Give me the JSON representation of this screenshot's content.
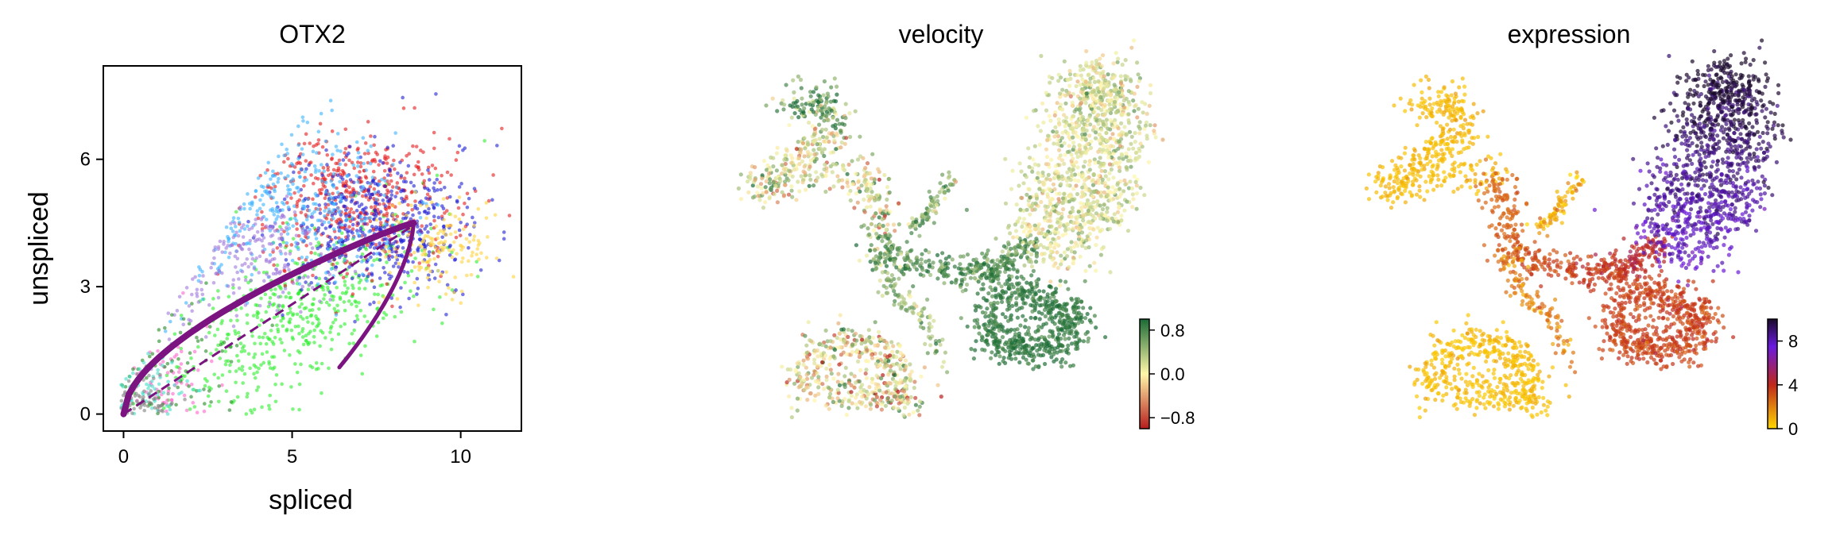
{
  "chart_data": [
    {
      "type": "scatter",
      "title": "OTX2",
      "xlabel": "spliced",
      "ylabel": "unspliced",
      "xlim": [
        -0.6,
        11.8
      ],
      "ylim": [
        -0.4,
        8.2
      ],
      "xticks": [
        0,
        5,
        10
      ],
      "yticks": [
        0,
        3,
        6
      ],
      "point_colors": [
        "#e41a1c",
        "#1f1fd6",
        "#3ab3ff",
        "#2bee2b",
        "#ffd23a",
        "#a078dc",
        "#ff66cc",
        "#228b22",
        "#44e0c8",
        "#808080",
        "#9e3ae0"
      ],
      "fit_color": "#7b1380",
      "steady_state_color": "#7b1380",
      "grid": false,
      "legend": "none"
    },
    {
      "type": "scatter",
      "title": "velocity",
      "colorbar": {
        "ticks": [
          "0.8",
          "0.0",
          "−0.8"
        ],
        "min": -1,
        "max": 1,
        "colors": [
          "#b71c1c",
          "#fff7a8",
          "#1a6b35"
        ]
      },
      "axes": "off"
    },
    {
      "type": "scatter",
      "title": "expression",
      "colorbar": {
        "ticks": [
          "8",
          "4",
          "0"
        ],
        "min": 0,
        "max": 10,
        "colors": [
          "#ffd700",
          "#c0281a",
          "#6a1ae0",
          "#1a0a2a"
        ]
      },
      "axes": "off"
    }
  ]
}
